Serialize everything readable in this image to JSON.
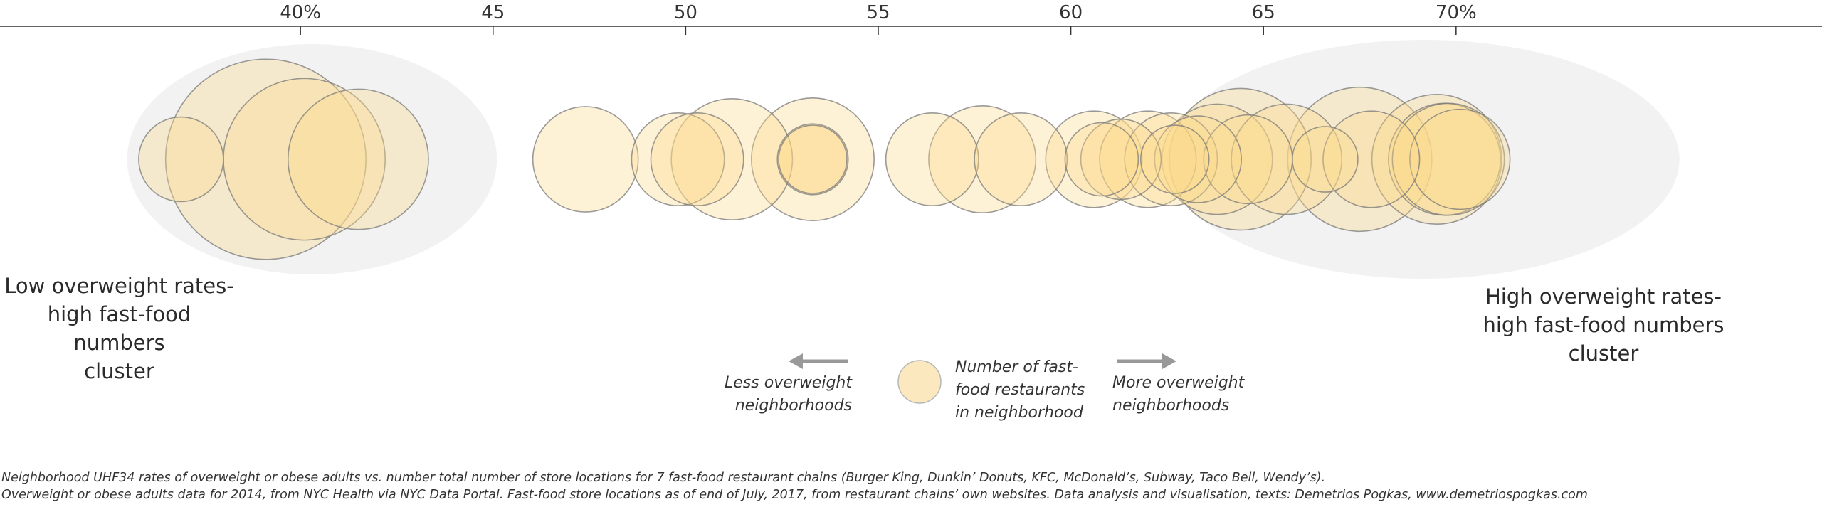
{
  "chart_data": {
    "type": "scatter",
    "title": "",
    "xlabel": "",
    "ylabel": "",
    "xlim": [
      32.2,
      79.5
    ],
    "x_ticks": [
      {
        "value": 40,
        "label": "40%"
      },
      {
        "value": 45,
        "label": "45"
      },
      {
        "value": 50,
        "label": "50"
      },
      {
        "value": 55,
        "label": "55"
      },
      {
        "value": 60,
        "label": "60"
      },
      {
        "value": 65,
        "label": "65"
      },
      {
        "value": 70,
        "label": "70%"
      }
    ],
    "size_encoding": "Number of fast-food restaurants in neighborhood",
    "points": [
      {
        "x": 36.9,
        "count": 20
      },
      {
        "x": 39.1,
        "count": 112
      },
      {
        "x": 40.1,
        "count": 73
      },
      {
        "x": 41.5,
        "count": 55
      },
      {
        "x": 47.4,
        "count": 31
      },
      {
        "x": 49.8,
        "count": 24
      },
      {
        "x": 50.3,
        "count": 24
      },
      {
        "x": 51.2,
        "count": 41
      },
      {
        "x": 53.3,
        "count": 42
      },
      {
        "x": 53.3,
        "count": 14
      },
      {
        "x": 53.3,
        "count": 13
      },
      {
        "x": 56.4,
        "count": 24
      },
      {
        "x": 57.7,
        "count": 32
      },
      {
        "x": 58.7,
        "count": 24
      },
      {
        "x": 60.6,
        "count": 26
      },
      {
        "x": 60.8,
        "count": 15
      },
      {
        "x": 61.3,
        "count": 18
      },
      {
        "x": 62.0,
        "count": 26
      },
      {
        "x": 62.6,
        "count": 24
      },
      {
        "x": 62.7,
        "count": 13
      },
      {
        "x": 63.3,
        "count": 21
      },
      {
        "x": 63.8,
        "count": 34
      },
      {
        "x": 64.4,
        "count": 56
      },
      {
        "x": 64.6,
        "count": 22
      },
      {
        "x": 65.6,
        "count": 34
      },
      {
        "x": 66.6,
        "count": 12
      },
      {
        "x": 67.5,
        "count": 58
      },
      {
        "x": 67.8,
        "count": 26
      },
      {
        "x": 69.5,
        "count": 47
      },
      {
        "x": 69.7,
        "count": 35
      },
      {
        "x": 69.8,
        "count": 35
      },
      {
        "x": 70.1,
        "count": 28
      }
    ],
    "clusters": [
      {
        "label": "Low overweight rates-\nhigh fast-food numbers\ncluster",
        "x_range": [
          35.5,
          45.1
        ]
      },
      {
        "label": "High overweight rates-\nhigh fast-food numbers\ncluster",
        "x_range": [
          62.5,
          75.8
        ]
      }
    ]
  },
  "legend": {
    "less_label": "Less overweight\nneighborhoods",
    "more_label": "More overweight\nneighborhoods",
    "size_label": "Number of fast-\nfood restaurants\nin neighborhood",
    "arrow_left_icon": "arrow-left-icon",
    "arrow_right_icon": "arrow-right-icon"
  },
  "footnotes": {
    "line1": "Neighborhood UHF34 rates of overweight or obese adults vs. number total number of store locations for 7 fast-food restaurant chains (Burger King, Dunkin’ Donuts, KFC, McDonald’s, Subway, Taco Bell, Wendy’s).",
    "line2": "Overweight or obese adults data for 2014, from NYC Health via NYC Data Portal. Fast-food store locations as of end of July, 2017, from restaurant chains’ own websites. Data analysis and visualisation, texts: Demetrios Pogkas, www.demetriospogkas.com"
  },
  "colors": {
    "bubble_fill": "#fdd98a",
    "bubble_stroke": "#7a7a7a",
    "cluster_fill": "#f2f2f2",
    "axis": "#333333",
    "arrow": "#999999",
    "legend_bubble": "#fce8bf"
  }
}
